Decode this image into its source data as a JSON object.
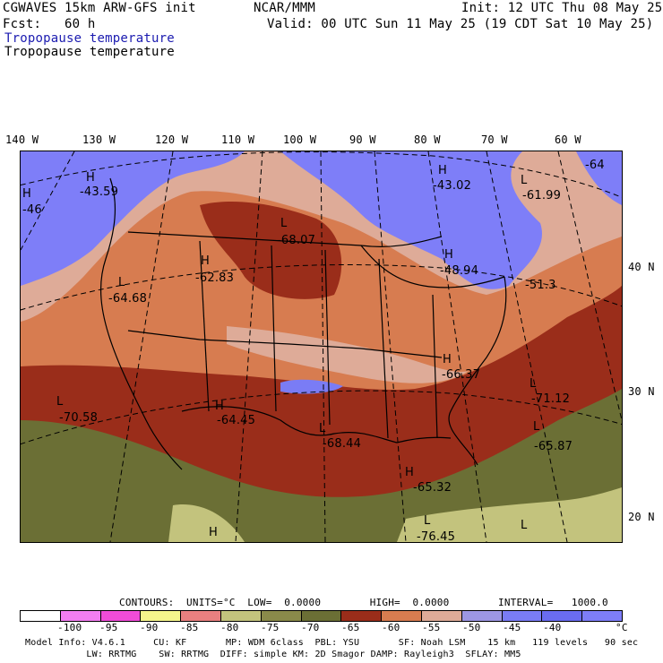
{
  "header": {
    "model": "CGWAVES 15km ARW-GFS init",
    "fcst": "Fcst:   60 h",
    "org": "NCAR/MMM",
    "init": "Init: 12 UTC Thu 08 May 25",
    "valid": "Valid: 00 UTC Sun 11 May 25 (19 CDT Sat 10 May 25)",
    "field_blue": "Tropopause temperature",
    "field_black": "Tropopause temperature"
  },
  "lon_labels": [
    "140 W",
    "130 W",
    "120 W",
    "110 W",
    "100 W",
    "90 W",
    "80 W",
    "70 W",
    "60 W"
  ],
  "lat_labels": [
    "40 N",
    "30 N",
    "20 N"
  ],
  "map_labels": {
    "highs": [
      "H",
      "H",
      "H",
      "H",
      "H",
      "H",
      "H",
      "H",
      "H"
    ],
    "lows": [
      "L",
      "L",
      "L",
      "L",
      "L",
      "L",
      "L",
      "L",
      "L"
    ],
    "values": [
      "-43.59",
      "-46",
      "-43.02",
      "-61.99",
      "-64",
      "-68.07",
      "-62.83",
      "-64.68",
      "-48.94",
      "-51.3",
      "-66.37",
      "-71.12",
      "-70.58",
      "-64.45",
      "-68.44",
      "-65.87",
      "-65.32",
      "-76.45"
    ]
  },
  "contours": {
    "text": "CONTOURS:  UNITS=°C  LOW=  0.0000        HIGH=  0.0000        INTERVAL=   1000.0"
  },
  "colorbar": {
    "colors": [
      "#ffffff",
      "#f27ef0",
      "#f04cd8",
      "#f5f58c",
      "#e98080",
      "#c3c37d",
      "#8a8a4a",
      "#6b6f35",
      "#9a2d1a",
      "#d77c50",
      "#deab98",
      "#9d97e3",
      "#7a7cf5",
      "#6a6cf0",
      "#7e7ef8"
    ],
    "labels": [
      "-100",
      "-95",
      "-90",
      "-85",
      "-80",
      "-75",
      "-70",
      "-65",
      "-60",
      "-55",
      "-50",
      "-45",
      "-40"
    ],
    "unit": "°C"
  },
  "footer": {
    "line1": "Model Info: V4.6.1     CU: KF       MP: WDM 6class  PBL: YSU       SF: Noah LSM    15 km   119 levels   90 sec",
    "line2": "           LW: RRTMG    SW: RRTMG  DIFF: simple KM: 2D Smagor DAMP: Rayleigh3  SFLAY: MM5"
  }
}
